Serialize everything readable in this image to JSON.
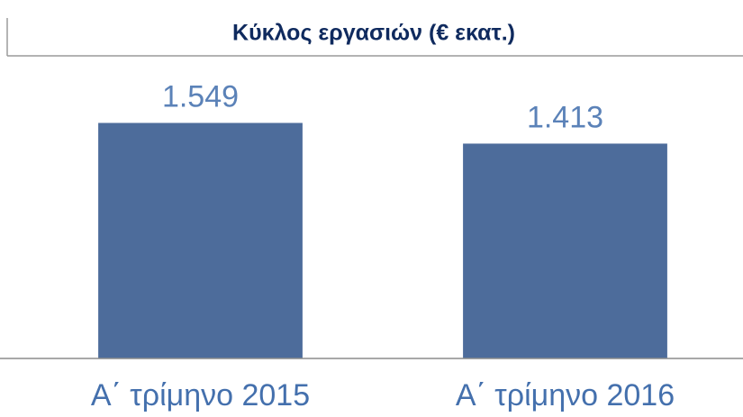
{
  "chart_data": {
    "type": "bar",
    "title": "Κύκλος εργασιών (€ εκατ.)",
    "categories": [
      "Α΄ τρίμηνο 2015",
      "Α΄ τρίμηνο 2016"
    ],
    "values": [
      1549,
      1413
    ],
    "value_labels": [
      "1.549",
      "1.413"
    ],
    "color": "#4d6c9b",
    "ylim": [
      0,
      1700
    ]
  }
}
